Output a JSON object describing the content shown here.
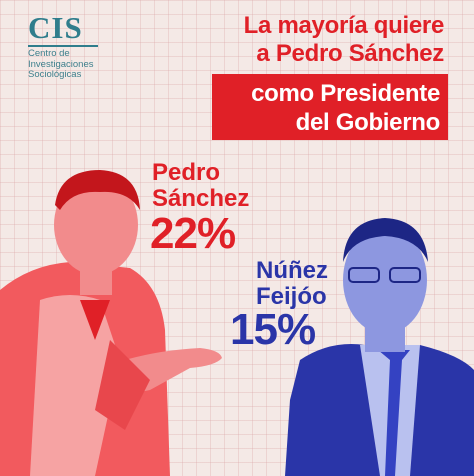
{
  "logo": {
    "mark": "CIS",
    "line1": "Centro de",
    "line2": "Investigaciones",
    "line3": "Sociológicas"
  },
  "headline": {
    "line1": "La mayoría quiere",
    "line2": "a Pedro Sánchez",
    "box_line1": "como Presidente",
    "box_line2": "del Gobierno"
  },
  "candidates": [
    {
      "name_line1": "Pedro",
      "name_line2": "Sánchez",
      "percent": "22%",
      "color": "#e02027"
    },
    {
      "name_line1": "Núñez",
      "name_line2": "Feijóo",
      "percent": "15%",
      "color": "#2a35a8"
    }
  ],
  "colors": {
    "accent_red": "#e02027",
    "accent_blue": "#2a35a8",
    "logo": "#2f7d8c",
    "background": "#f4e9e6"
  }
}
